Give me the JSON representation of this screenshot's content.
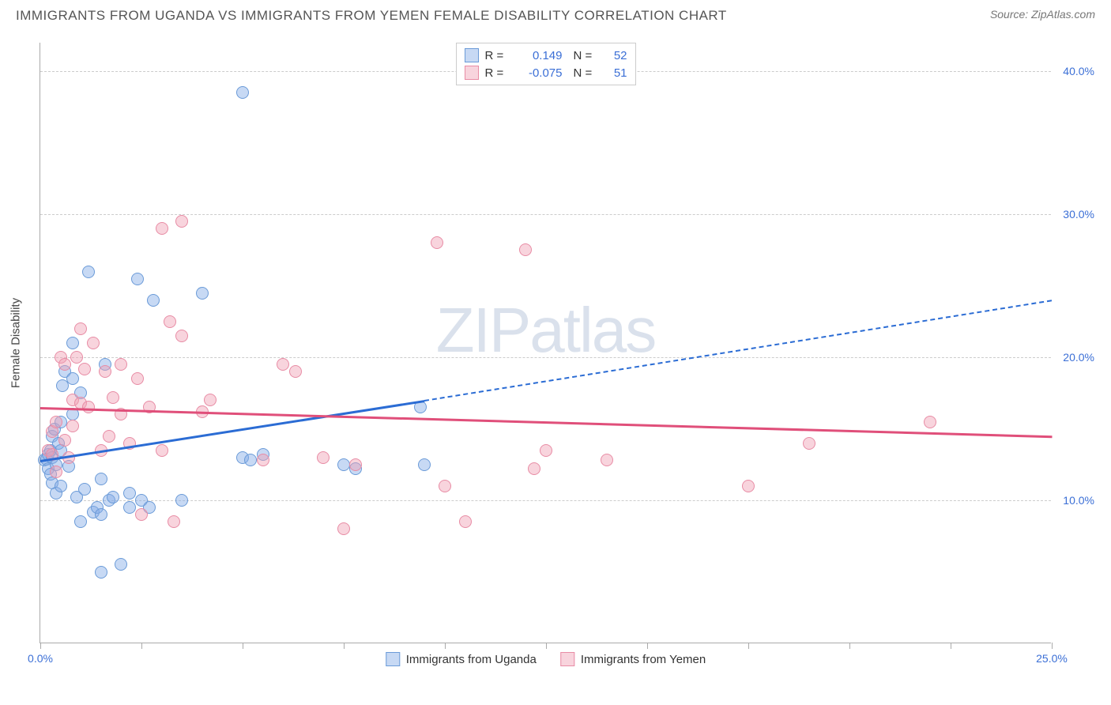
{
  "header": {
    "title": "IMMIGRANTS FROM UGANDA VS IMMIGRANTS FROM YEMEN FEMALE DISABILITY CORRELATION CHART",
    "source": "Source: ZipAtlas.com"
  },
  "chart": {
    "type": "scatter",
    "watermark": "ZIPatlas",
    "ylabel": "Female Disability",
    "xlim": [
      0,
      25
    ],
    "ylim": [
      0,
      42
    ],
    "background_color": "#ffffff",
    "grid_color": "#cccccc",
    "axis_color": "#aaaaaa",
    "y_ticks": [
      {
        "value": 10,
        "label": "10.0%"
      },
      {
        "value": 20,
        "label": "20.0%"
      },
      {
        "value": 30,
        "label": "30.0%"
      },
      {
        "value": 40,
        "label": "40.0%"
      }
    ],
    "x_ticks_pos": [
      0,
      2.5,
      5,
      7.5,
      10,
      12.5,
      15,
      17.5,
      20,
      22.5,
      25
    ],
    "x_labels": [
      {
        "value": 0,
        "label": "0.0%"
      },
      {
        "value": 25,
        "label": "25.0%"
      }
    ],
    "marker_size": 16,
    "series": [
      {
        "name": "Immigrants from Uganda",
        "fill": "rgba(130,170,230,0.45)",
        "stroke": "#6b9bd8",
        "R": "0.149",
        "N": "52",
        "points": [
          [
            0.1,
            12.8
          ],
          [
            0.15,
            12.9
          ],
          [
            0.2,
            13.2
          ],
          [
            0.2,
            12.2
          ],
          [
            0.25,
            13.5
          ],
          [
            0.25,
            11.8
          ],
          [
            0.3,
            13.0
          ],
          [
            0.3,
            14.5
          ],
          [
            0.3,
            11.2
          ],
          [
            0.35,
            15.0
          ],
          [
            0.4,
            12.5
          ],
          [
            0.4,
            10.5
          ],
          [
            0.45,
            14.0
          ],
          [
            0.5,
            13.5
          ],
          [
            0.5,
            11.0
          ],
          [
            0.5,
            15.5
          ],
          [
            0.55,
            18.0
          ],
          [
            0.6,
            19.0
          ],
          [
            0.7,
            12.4
          ],
          [
            0.8,
            18.5
          ],
          [
            0.8,
            16.0
          ],
          [
            0.8,
            21.0
          ],
          [
            0.9,
            10.2
          ],
          [
            1.0,
            17.5
          ],
          [
            1.0,
            8.5
          ],
          [
            1.1,
            10.8
          ],
          [
            1.2,
            26.0
          ],
          [
            1.3,
            9.2
          ],
          [
            1.4,
            9.5
          ],
          [
            1.5,
            11.5
          ],
          [
            1.5,
            9.0
          ],
          [
            1.5,
            5.0
          ],
          [
            1.6,
            19.5
          ],
          [
            1.7,
            10.0
          ],
          [
            1.8,
            10.2
          ],
          [
            2.0,
            5.5
          ],
          [
            2.2,
            10.5
          ],
          [
            2.2,
            9.5
          ],
          [
            2.4,
            25.5
          ],
          [
            2.5,
            10.0
          ],
          [
            2.7,
            9.5
          ],
          [
            2.8,
            24.0
          ],
          [
            3.5,
            10.0
          ],
          [
            4.0,
            24.5
          ],
          [
            5.0,
            38.5
          ],
          [
            5.0,
            13.0
          ],
          [
            5.2,
            12.8
          ],
          [
            5.5,
            13.2
          ],
          [
            7.5,
            12.5
          ],
          [
            7.8,
            12.2
          ],
          [
            9.4,
            16.5
          ],
          [
            9.5,
            12.5
          ]
        ],
        "trend": {
          "x1": 0,
          "y1": 12.8,
          "x2": 9.5,
          "y2": 17.0,
          "solid_color": "#2b6cd4"
        },
        "trend_ext": {
          "x1": 9.5,
          "y1": 17.0,
          "x2": 25,
          "y2": 24.0,
          "dash_color": "#2b6cd4"
        }
      },
      {
        "name": "Immigrants from Yemen",
        "fill": "rgba(240,160,180,0.45)",
        "stroke": "#e88ca5",
        "R": "-0.075",
        "N": "51",
        "points": [
          [
            0.2,
            13.5
          ],
          [
            0.3,
            14.8
          ],
          [
            0.3,
            13.2
          ],
          [
            0.4,
            15.5
          ],
          [
            0.4,
            12.0
          ],
          [
            0.5,
            20.0
          ],
          [
            0.6,
            14.2
          ],
          [
            0.6,
            19.5
          ],
          [
            0.7,
            13.0
          ],
          [
            0.8,
            15.2
          ],
          [
            0.8,
            17.0
          ],
          [
            0.9,
            20.0
          ],
          [
            1.0,
            16.8
          ],
          [
            1.0,
            22.0
          ],
          [
            1.1,
            19.2
          ],
          [
            1.2,
            16.5
          ],
          [
            1.3,
            21.0
          ],
          [
            1.5,
            13.5
          ],
          [
            1.6,
            19.0
          ],
          [
            1.7,
            14.5
          ],
          [
            1.8,
            17.2
          ],
          [
            2.0,
            19.5
          ],
          [
            2.0,
            16.0
          ],
          [
            2.2,
            14.0
          ],
          [
            2.4,
            18.5
          ],
          [
            2.5,
            9.0
          ],
          [
            2.7,
            16.5
          ],
          [
            3.0,
            29.0
          ],
          [
            3.0,
            13.5
          ],
          [
            3.2,
            22.5
          ],
          [
            3.3,
            8.5
          ],
          [
            3.5,
            21.5
          ],
          [
            3.5,
            29.5
          ],
          [
            4.0,
            16.2
          ],
          [
            4.2,
            17.0
          ],
          [
            5.5,
            12.8
          ],
          [
            6.0,
            19.5
          ],
          [
            6.3,
            19.0
          ],
          [
            7.0,
            13.0
          ],
          [
            7.5,
            8.0
          ],
          [
            7.8,
            12.5
          ],
          [
            9.8,
            28.0
          ],
          [
            10.0,
            11.0
          ],
          [
            10.5,
            8.5
          ],
          [
            12.0,
            27.5
          ],
          [
            12.5,
            13.5
          ],
          [
            14.0,
            12.8
          ],
          [
            17.5,
            11.0
          ],
          [
            19.0,
            14.0
          ],
          [
            22.0,
            15.5
          ],
          [
            12.2,
            12.2
          ]
        ],
        "trend": {
          "x1": 0,
          "y1": 16.5,
          "x2": 25,
          "y2": 14.5,
          "solid_color": "#e04f7a"
        }
      }
    ],
    "legend_bottom": [
      {
        "swatch_fill": "rgba(130,170,230,0.45)",
        "swatch_stroke": "#6b9bd8",
        "label": "Immigrants from Uganda"
      },
      {
        "swatch_fill": "rgba(240,160,180,0.45)",
        "swatch_stroke": "#e88ca5",
        "label": "Immigrants from Yemen"
      }
    ],
    "label_color": "#3b6fd6",
    "label_fontsize": 14
  }
}
